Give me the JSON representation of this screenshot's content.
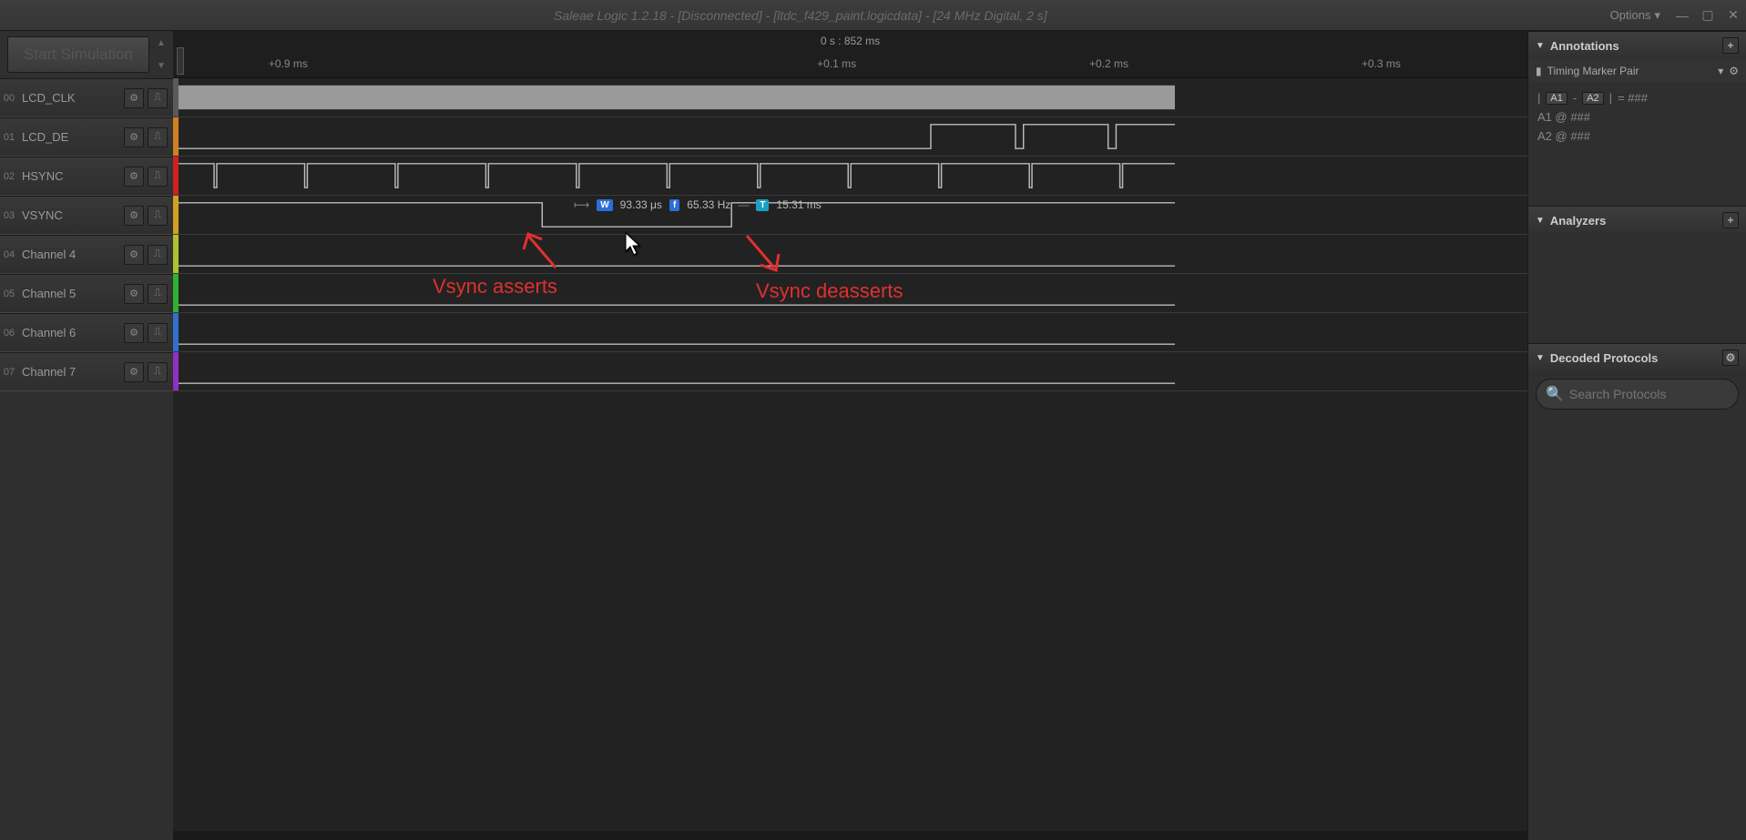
{
  "titlebar": {
    "title": "Saleae Logic 1.2.18 - [Disconnected] - [ltdc_f429_paint.logicdata] - [24 MHz Digital, 2 s]",
    "options": "Options"
  },
  "sim_button": "Start Simulation",
  "timeline": {
    "center_label": "0 s : 852 ms",
    "ticks": [
      {
        "pos_pct": 8.5,
        "label": "+0.9 ms"
      },
      {
        "pos_pct": 49.0,
        "label": "+0.1 ms"
      },
      {
        "pos_pct": 69.1,
        "label": "+0.2 ms"
      },
      {
        "pos_pct": 89.2,
        "label": "+0.3 ms"
      }
    ]
  },
  "channels": [
    {
      "num": "00",
      "name": "LCD_CLK",
      "color": "#5a5a5a"
    },
    {
      "num": "01",
      "name": "LCD_DE",
      "color": "#d08020"
    },
    {
      "num": "02",
      "name": "HSYNC",
      "color": "#d02020"
    },
    {
      "num": "03",
      "name": "VSYNC",
      "color": "#d0a020"
    },
    {
      "num": "04",
      "name": "Channel 4",
      "color": "#b0c030"
    },
    {
      "num": "05",
      "name": "Channel 5",
      "color": "#30b030"
    },
    {
      "num": "06",
      "name": "Channel 6",
      "color": "#3070d0"
    },
    {
      "num": "07",
      "name": "Channel 7",
      "color": "#9030c0"
    }
  ],
  "measurement": {
    "w_label": "W",
    "w_val": "93.33 μs",
    "f_label": "f",
    "f_val": "65.33 Hz",
    "t_label": "T",
    "t_val": "15.31 ms"
  },
  "annotations_red": {
    "assert": "Vsync asserts",
    "deassert": "Vsync deasserts"
  },
  "panels": {
    "annotations": "Annotations",
    "timing_pair": "Timing Marker Pair",
    "a1": "A1",
    "a2": "A2",
    "eq": " = ###",
    "dash": "-",
    "a1_line": "A1  @  ###",
    "a2_line": "A2  @  ###",
    "analyzers": "Analyzers",
    "decoded": "Decoded Protocols",
    "search_ph": "Search Protocols"
  }
}
